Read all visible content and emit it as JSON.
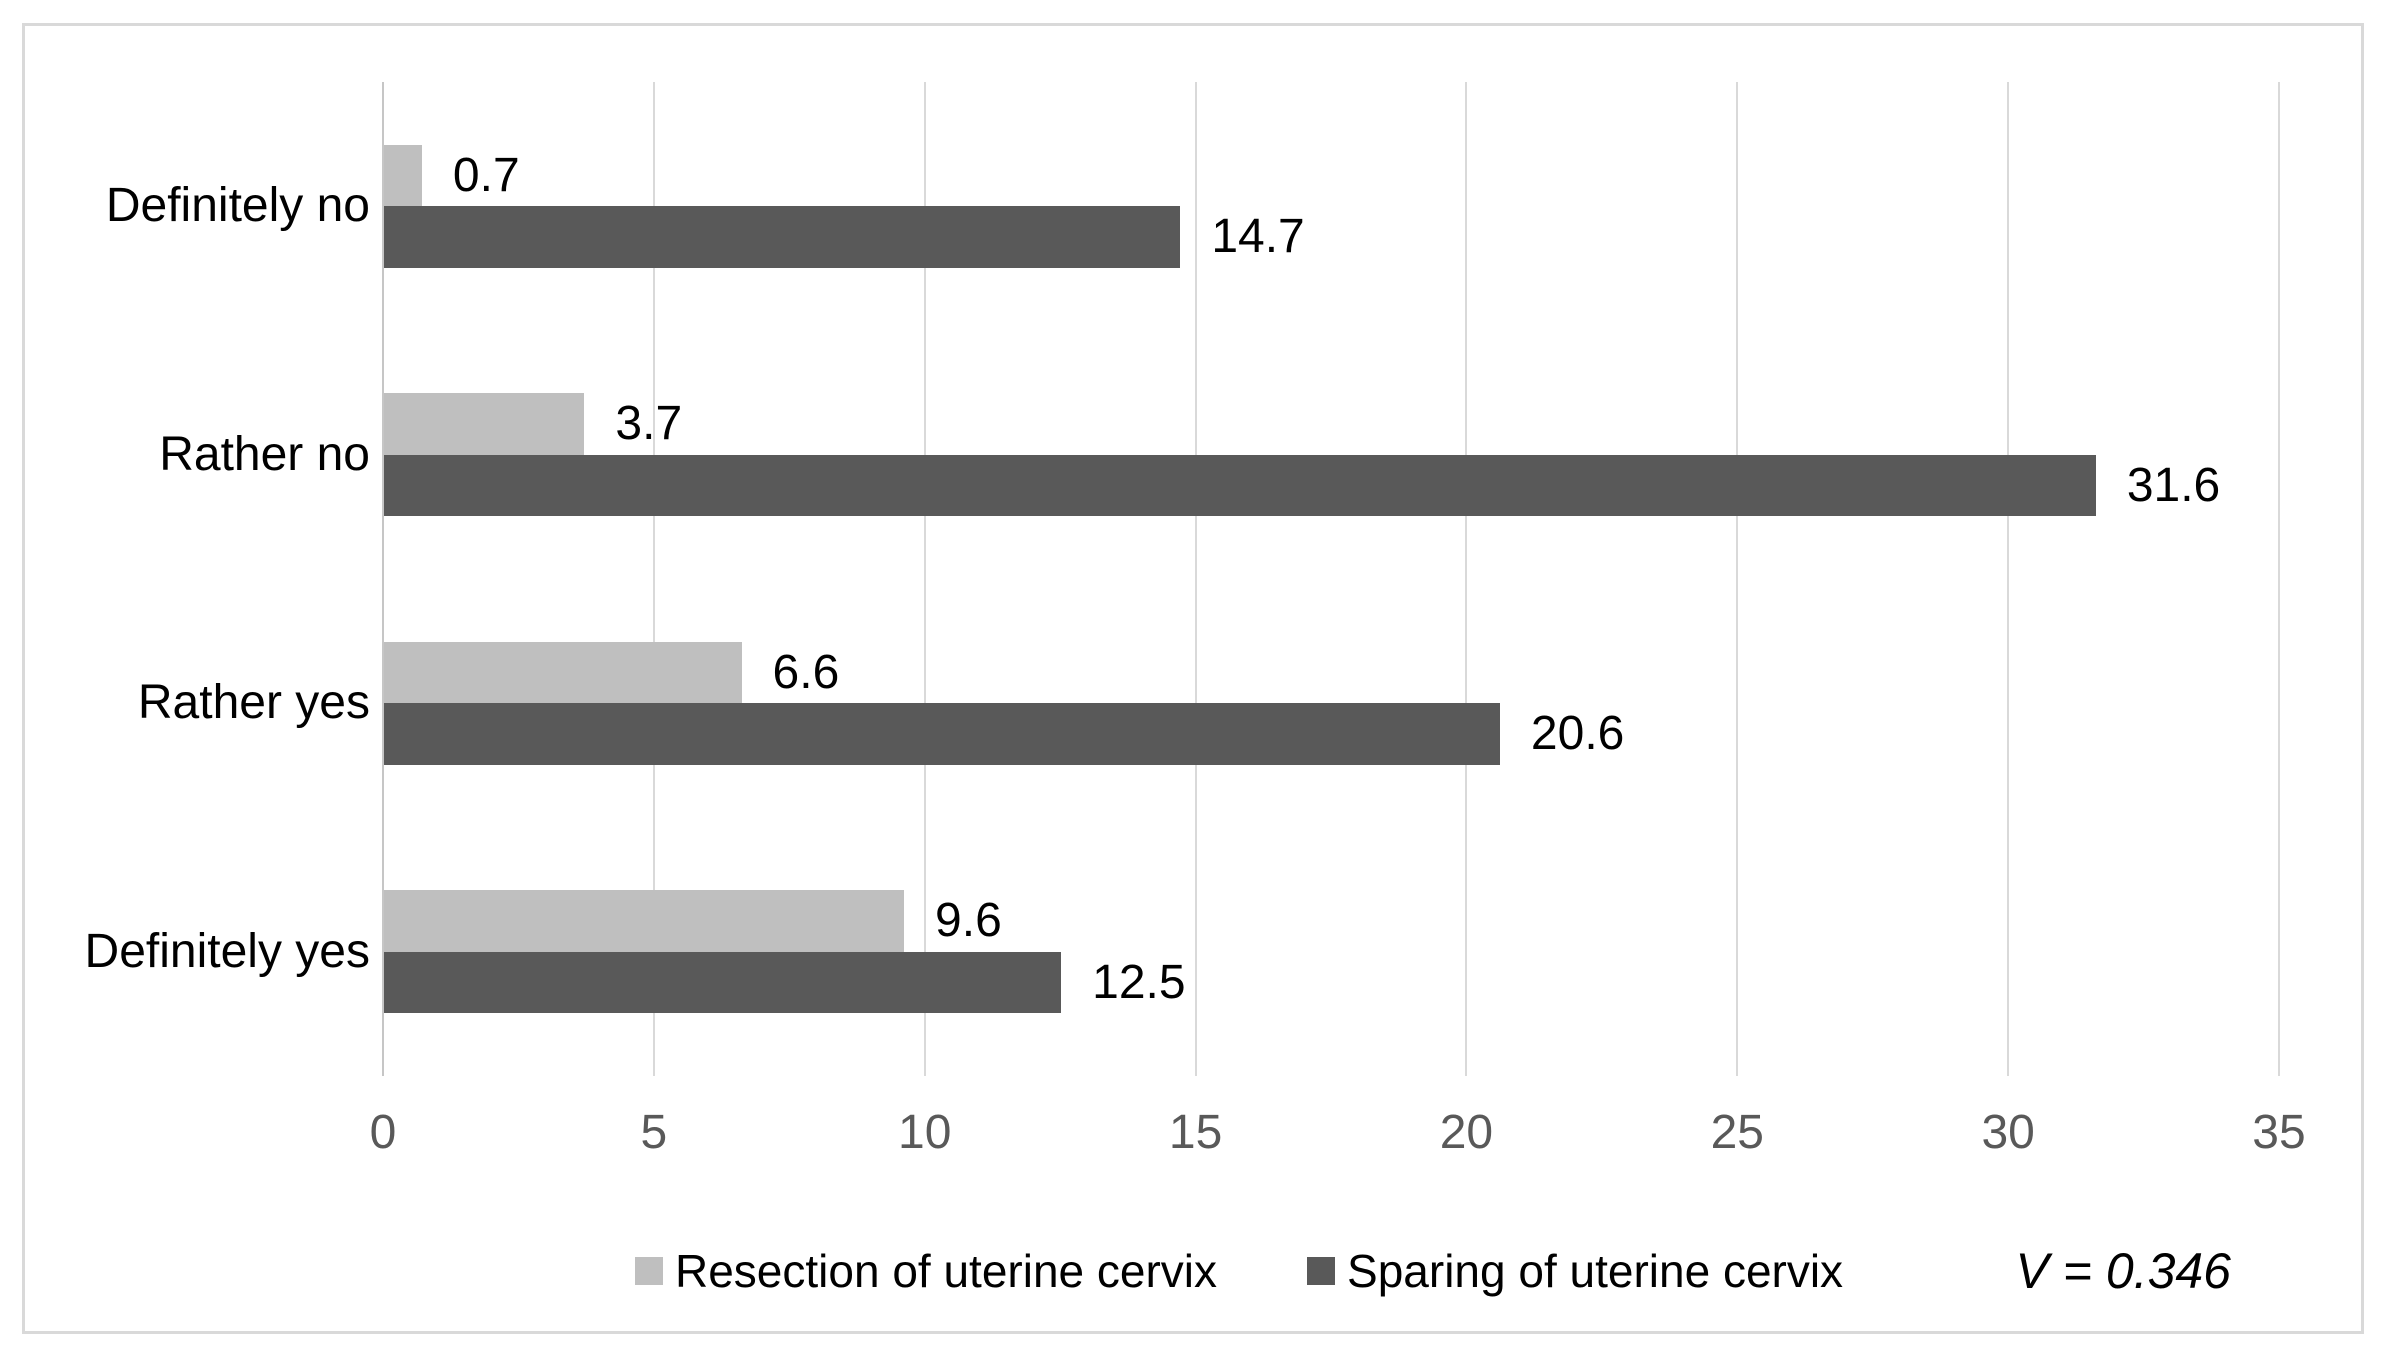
{
  "chart_data": {
    "type": "bar",
    "orientation": "horizontal",
    "title": "",
    "categories": [
      "Definitely no",
      "Rather no",
      "Rather yes",
      "Definitely yes"
    ],
    "series": [
      {
        "name": "Resection of uterine cervix",
        "color": "#bfbfbf",
        "values": [
          0.7,
          3.7,
          6.6,
          9.6
        ]
      },
      {
        "name": "Sparing of uterine cervix",
        "color": "#595959",
        "values": [
          14.7,
          31.6,
          20.6,
          12.5
        ]
      }
    ],
    "xlim": [
      0,
      35
    ],
    "x_ticks": [
      0,
      5,
      10,
      15,
      20,
      25,
      30,
      35
    ],
    "grid": true,
    "data_labels": true,
    "legend_position": "bottom",
    "annotation": "V = 0.346"
  },
  "styles": {
    "background": "#ffffff",
    "frame_border_color": "#d9d9d9",
    "grid_color": "#d9d9d9",
    "tick_label_color": "#595959",
    "text_color": "#000000"
  }
}
